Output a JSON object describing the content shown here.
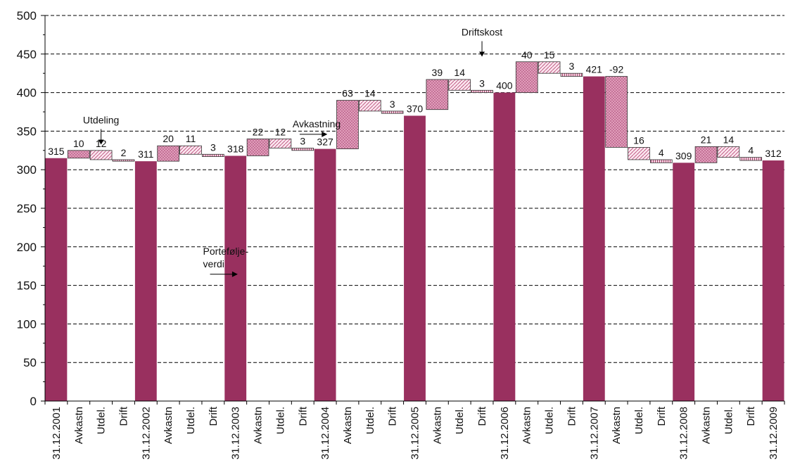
{
  "chart_data": {
    "type": "bar",
    "subtype": "waterfall",
    "title": "",
    "xlabel": "",
    "ylabel": "",
    "ylim": [
      0,
      500
    ],
    "yticks": [
      0,
      50,
      100,
      150,
      200,
      250,
      300,
      350,
      400,
      450,
      500
    ],
    "grid": "horizontal dashed",
    "colors": {
      "portfolio": "#99305f",
      "avkastning": "#e8a8c4",
      "outline": "#000000"
    },
    "categories": [
      "31.12.2001",
      "Avkastn",
      "Utdel.",
      "Drift",
      "31.12.2002",
      "Avkastn",
      "Utdel.",
      "Drift",
      "31.12.2003",
      "Avkastn",
      "Utdel.",
      "Drift",
      "31.12.2004",
      "Avkastn",
      "Utdel.",
      "Drift",
      "31.12.2005",
      "Avkastn",
      "Utdel.",
      "Drift",
      "31.12.2006",
      "Avkastn",
      "Utdel.",
      "Drift",
      "31.12.2007",
      "Avkastn",
      "Utdel.",
      "Drift",
      "31.12.2008",
      "Avkastn",
      "Utdel.",
      "Drift",
      "31.12.2009"
    ],
    "bars": [
      {
        "kind": "total",
        "low": 0,
        "high": 315,
        "label": "315"
      },
      {
        "kind": "avkastning",
        "low": 315,
        "high": 325,
        "label": "10"
      },
      {
        "kind": "utdeling",
        "low": 313,
        "high": 325,
        "label": "12"
      },
      {
        "kind": "drift",
        "low": 311,
        "high": 313,
        "label": "2"
      },
      {
        "kind": "total",
        "low": 0,
        "high": 311,
        "label": "311"
      },
      {
        "kind": "avkastning",
        "low": 311,
        "high": 331,
        "label": "20"
      },
      {
        "kind": "utdeling",
        "low": 320,
        "high": 331,
        "label": "11"
      },
      {
        "kind": "drift",
        "low": 317,
        "high": 320,
        "label": "3"
      },
      {
        "kind": "total",
        "low": 0,
        "high": 318,
        "label": "318"
      },
      {
        "kind": "avkastning",
        "low": 318,
        "high": 340,
        "label": "22"
      },
      {
        "kind": "utdeling",
        "low": 328,
        "high": 340,
        "label": "12"
      },
      {
        "kind": "drift",
        "low": 325,
        "high": 328,
        "label": "3"
      },
      {
        "kind": "total",
        "low": 0,
        "high": 327,
        "label": "327"
      },
      {
        "kind": "avkastning",
        "low": 327,
        "high": 390,
        "label": "63"
      },
      {
        "kind": "utdeling",
        "low": 376,
        "high": 390,
        "label": "14"
      },
      {
        "kind": "drift",
        "low": 373,
        "high": 376,
        "label": "3"
      },
      {
        "kind": "total",
        "low": 0,
        "high": 370,
        "label": "370"
      },
      {
        "kind": "avkastning",
        "low": 378,
        "high": 417,
        "label": "39"
      },
      {
        "kind": "utdeling",
        "low": 403,
        "high": 417,
        "label": "14"
      },
      {
        "kind": "drift",
        "low": 400,
        "high": 403,
        "label": "3"
      },
      {
        "kind": "total",
        "low": 0,
        "high": 400,
        "label": "400"
      },
      {
        "kind": "avkastning",
        "low": 400,
        "high": 440,
        "label": "40"
      },
      {
        "kind": "utdeling",
        "low": 425,
        "high": 440,
        "label": "15"
      },
      {
        "kind": "drift",
        "low": 421,
        "high": 425,
        "label": "3"
      },
      {
        "kind": "total",
        "low": 0,
        "high": 421,
        "label": "421"
      },
      {
        "kind": "avkastning",
        "low": 329,
        "high": 421,
        "label": "-92"
      },
      {
        "kind": "utdeling",
        "low": 313,
        "high": 329,
        "label": "16"
      },
      {
        "kind": "drift",
        "low": 309,
        "high": 313,
        "label": "4"
      },
      {
        "kind": "total",
        "low": 0,
        "high": 309,
        "label": "309"
      },
      {
        "kind": "avkastning",
        "low": 309,
        "high": 330,
        "label": "21"
      },
      {
        "kind": "utdeling",
        "low": 316,
        "high": 330,
        "label": "14"
      },
      {
        "kind": "drift",
        "low": 312,
        "high": 316,
        "label": "4"
      },
      {
        "kind": "total",
        "low": 0,
        "high": 312,
        "label": "312"
      }
    ],
    "annotations": [
      {
        "lines": [
          "Utdeling"
        ],
        "pointer": "down",
        "category_index": 2,
        "value": 360
      },
      {
        "lines": [
          "Avkastning"
        ],
        "pointer": "right",
        "category_index": 12,
        "value": 355
      },
      {
        "lines": [
          "Driftskost"
        ],
        "pointer": "down",
        "category_index": 19,
        "value": 474
      },
      {
        "lines": [
          "Portefølje-",
          "verdi"
        ],
        "pointer": "right",
        "category_index": 8,
        "value": 190
      }
    ]
  }
}
